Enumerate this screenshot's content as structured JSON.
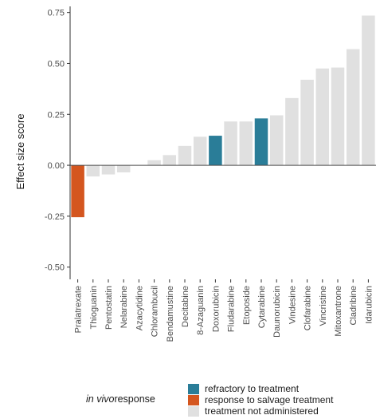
{
  "chart_data": {
    "type": "bar",
    "title": "",
    "xlabel": "",
    "ylabel": "Effect size score",
    "ylim": [
      -0.56,
      0.78
    ],
    "yticks": [
      -0.5,
      -0.25,
      0.0,
      0.25,
      0.5,
      0.75
    ],
    "ytick_labels": [
      "-0.50",
      "-0.25",
      "0.00",
      "0.25",
      "0.50",
      "0.75"
    ],
    "grid": false,
    "categories": [
      "Pralatrexate",
      "Thioguanin",
      "Pentostatin",
      "Nelarabine",
      "Azacytidine",
      "Chlorambucil",
      "Bendamustine",
      "Decitabine",
      "8-Azaguanin",
      "Doxorubicin",
      "Fludarabine",
      "Etoposide",
      "Cytarabine",
      "Daunorubicin",
      "Vindesine",
      "Clofarabine",
      "Vincristine",
      "Mitoxantrone",
      "Cladribine",
      "Idarubicin"
    ],
    "values": [
      -0.255,
      -0.055,
      -0.045,
      -0.035,
      0.0,
      0.025,
      0.05,
      0.095,
      0.14,
      0.145,
      0.215,
      0.215,
      0.23,
      0.245,
      0.33,
      0.42,
      0.475,
      0.48,
      0.57,
      0.735
    ],
    "groups": [
      "response to salvage treatment",
      "treatment not administered",
      "treatment not administered",
      "treatment not administered",
      "treatment not administered",
      "treatment not administered",
      "treatment not administered",
      "treatment not administered",
      "treatment not administered",
      "refractory to treatment",
      "treatment not administered",
      "treatment not administered",
      "refractory to treatment",
      "treatment not administered",
      "treatment not administered",
      "treatment not administered",
      "treatment not administered",
      "treatment not administered",
      "treatment not administered",
      "treatment not administered"
    ],
    "legend": {
      "placement": "bottom",
      "title_italic": "in vivo",
      "title_rest": "response",
      "entries": [
        {
          "label": "refractory to treatment",
          "color": "#2a7d98"
        },
        {
          "label": "response to salvage treatment",
          "color": "#d4561f"
        },
        {
          "label": "treatment not administered",
          "color": "#e0e0e0"
        }
      ]
    }
  }
}
